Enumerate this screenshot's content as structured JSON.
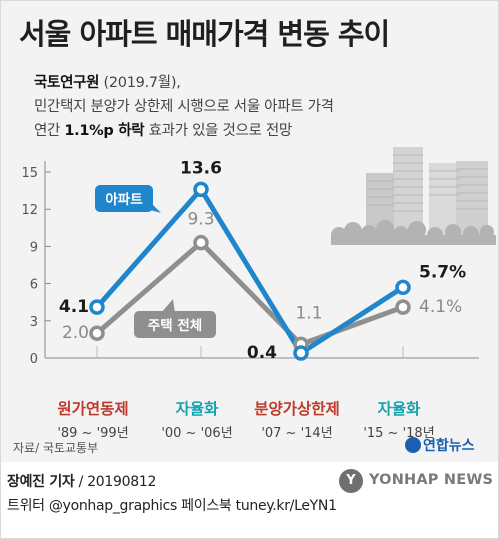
{
  "title": "서울 아파트 매매가격 변동 추이",
  "subtitle": {
    "org": "국토연구원",
    "date": " (2019.7월),",
    "line2": "민간택지 분양가 상한제 시행으로 서울 아파트 가격",
    "line3_pre": "연간 ",
    "line3_bold": "1.1%p 하락",
    "line3_post": " 효과가 있을 것으로 전망"
  },
  "colors": {
    "apartment": "#1f86cc",
    "housing": "#8f8f8f",
    "period_red": "#c0392b",
    "period_teal": "#12a3b0",
    "axis": "#8a8a8a"
  },
  "chart_data": {
    "type": "line",
    "y_ticks": [
      "15",
      "12",
      "9",
      "6",
      "3",
      "0"
    ],
    "ylim": [
      0,
      15
    ],
    "grid": false,
    "categories": [
      {
        "label": "원가연동제",
        "period": "'89 ~ '99년",
        "color": "red"
      },
      {
        "label": "자율화",
        "period": "'00 ~ '06년",
        "color": "teal"
      },
      {
        "label": "분양가상한제",
        "period": "'07 ~ '14년",
        "color": "red"
      },
      {
        "label": "자율화",
        "period": "'15 ~ '18년",
        "color": "teal"
      }
    ],
    "series": [
      {
        "name": "아파트",
        "values": [
          4.1,
          13.6,
          0.4,
          5.7
        ],
        "labels": [
          "4.1",
          "13.6",
          "0.4",
          "5.7%"
        ]
      },
      {
        "name": "주택 전체",
        "values": [
          2.0,
          9.3,
          1.1,
          4.1
        ],
        "labels": [
          "2.0",
          "9.3",
          "1.1",
          "4.1%"
        ]
      }
    ]
  },
  "footer": {
    "source": "자료/ 국토교통부",
    "logo": "연합뉴스",
    "credit_name": "장예진 기자",
    "credit_rest": " / 20190812",
    "social": "트위터 @yonhap_graphics  페이스북 tuney.kr/LeYN1",
    "watermark": "YONHAP NEWS"
  }
}
